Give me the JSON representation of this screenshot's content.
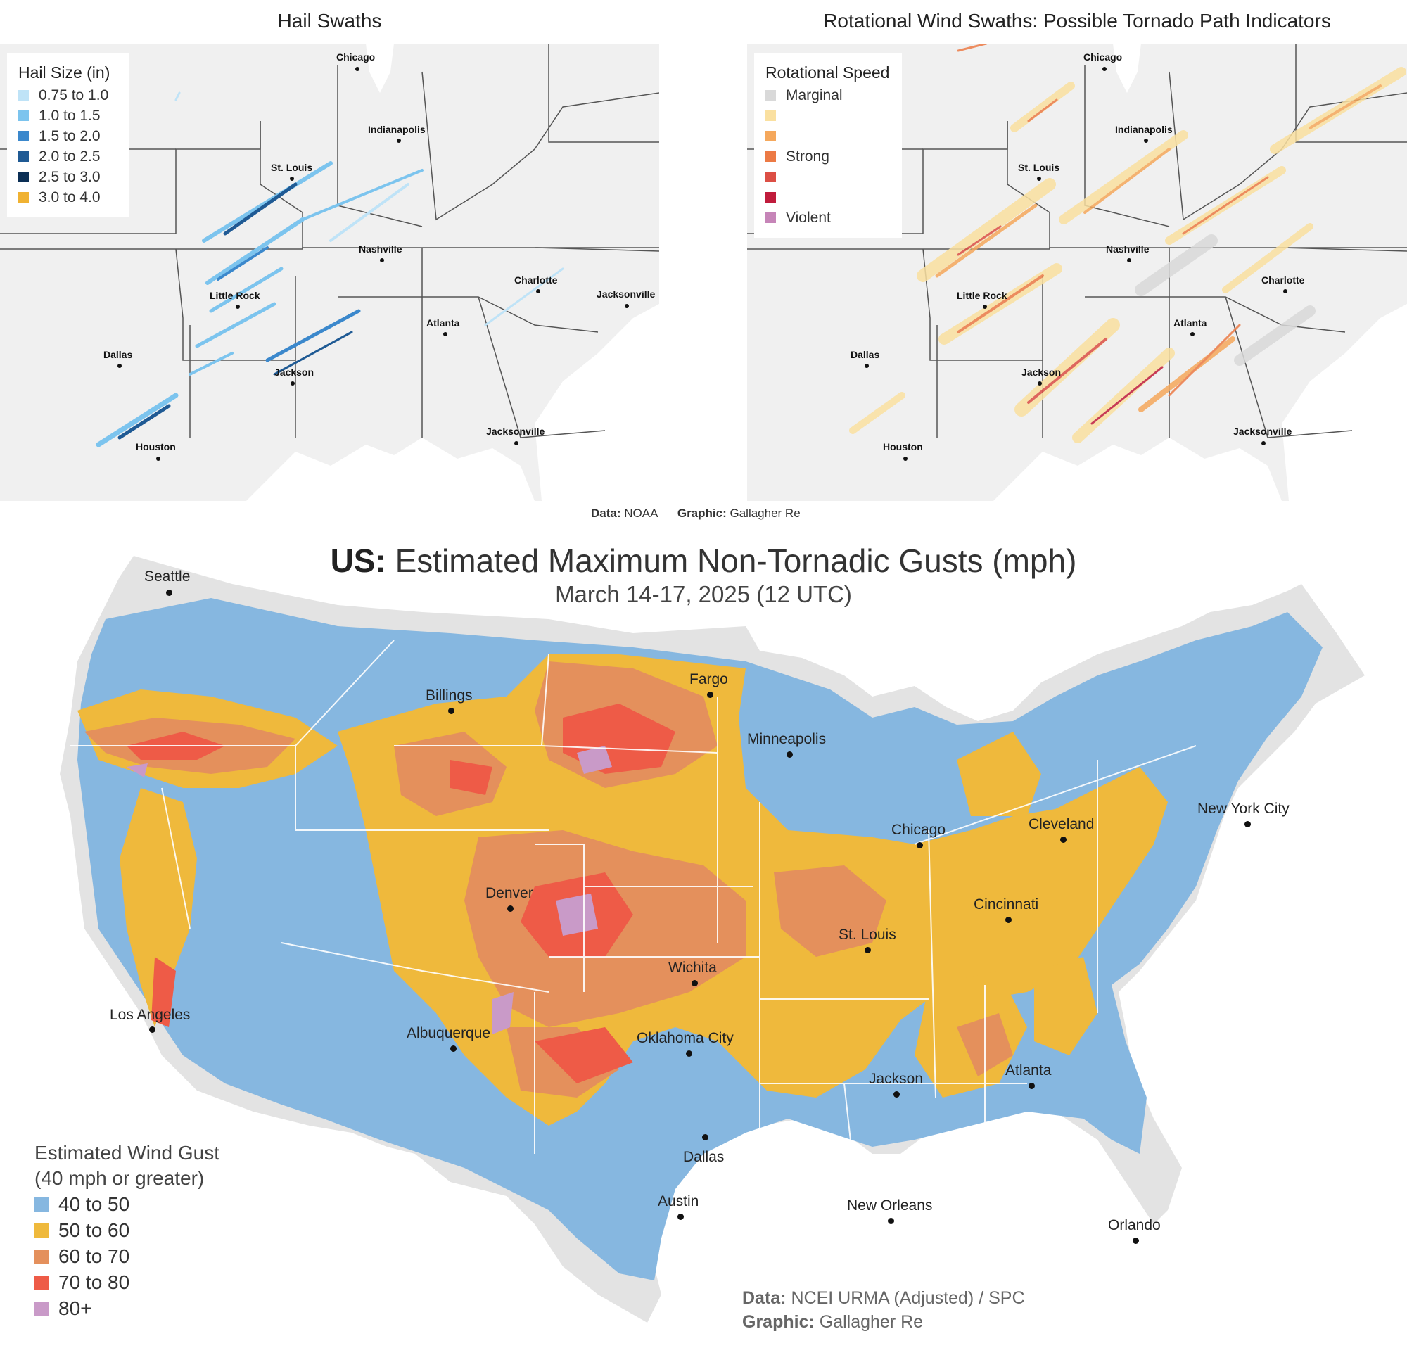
{
  "hail": {
    "title": "Hail Swaths",
    "legend_title": "Hail Size (in)",
    "legend": [
      {
        "label": "0.75 to 1.0",
        "color": "#bfe3f7"
      },
      {
        "label": "1.0 to 1.5",
        "color": "#7cc4ee"
      },
      {
        "label": "1.5 to 2.0",
        "color": "#3b88cc"
      },
      {
        "label": "2.0 to 2.5",
        "color": "#1f5a94"
      },
      {
        "label": "2.5 to 3.0",
        "color": "#0b2f55"
      },
      {
        "label": "3.0 to 4.0",
        "color": "#f0b232"
      }
    ]
  },
  "rotation": {
    "title": "Rotational Wind Swaths: Possible Tornado Path Indicators",
    "legend_title": "Rotational Speed",
    "legend": [
      {
        "label": "Marginal",
        "color": "#d9d9d9"
      },
      {
        "label": "",
        "color": "#fae0a0"
      },
      {
        "label": "",
        "color": "#f5a85c"
      },
      {
        "label": "Strong",
        "color": "#ec7a45"
      },
      {
        "label": "",
        "color": "#dc4f45"
      },
      {
        "label": "",
        "color": "#c01c3c"
      },
      {
        "label": "Violent",
        "color": "#c685b8"
      }
    ]
  },
  "small_cities": {
    "chicago": "Chicago",
    "indianapolis": "Indianapolis",
    "st_louis": "St. Louis",
    "nashville": "Nashville",
    "charlotte": "Charlotte",
    "little_rock": "Little Rock",
    "jacksonville_nc": "Jacksonville",
    "atlanta": "Atlanta",
    "dallas": "Dallas",
    "jackson": "Jackson",
    "houston": "Houston",
    "jacksonville_fl": "Jacksonville"
  },
  "top_credit": {
    "data_label": "Data:",
    "data_value": "NOAA",
    "graphic_label": "Graphic:",
    "graphic_value": "Gallagher Re"
  },
  "gusts": {
    "title_bold": "US:",
    "title_rest": "Estimated Maximum Non-Tornadic Gusts (mph)",
    "subtitle": "March 14-17, 2025 (12 UTC)",
    "legend_title_line1": "Estimated Wind Gust",
    "legend_title_line2": "(40 mph or greater)",
    "legend": [
      {
        "label": "40 to 50",
        "color": "#86b7e0"
      },
      {
        "label": "50 to 60",
        "color": "#efb93c"
      },
      {
        "label": "60 to 70",
        "color": "#e4905c"
      },
      {
        "label": "70 to 80",
        "color": "#ee5b47"
      },
      {
        "label": "80+",
        "color": "#c99ac8"
      }
    ],
    "cities": {
      "seattle": "Seattle",
      "billings": "Billings",
      "fargo": "Fargo",
      "minneapolis": "Minneapolis",
      "chicago": "Chicago",
      "cleveland": "Cleveland",
      "new_york": "New York City",
      "cincinnati": "Cincinnati",
      "st_louis": "St. Louis",
      "denver": "Denver",
      "wichita": "Wichita",
      "los_angeles": "Los Angeles",
      "albuquerque": "Albuquerque",
      "oklahoma_city": "Oklahoma City",
      "jackson": "Jackson",
      "atlanta": "Atlanta",
      "dallas": "Dallas",
      "austin": "Austin",
      "new_orleans": "New Orleans",
      "orlando": "Orlando"
    },
    "credit": {
      "data_label": "Data:",
      "data_value": "NCEI URMA (Adjusted) / SPC",
      "graphic_label": "Graphic:",
      "graphic_value": "Gallagher Re"
    }
  }
}
